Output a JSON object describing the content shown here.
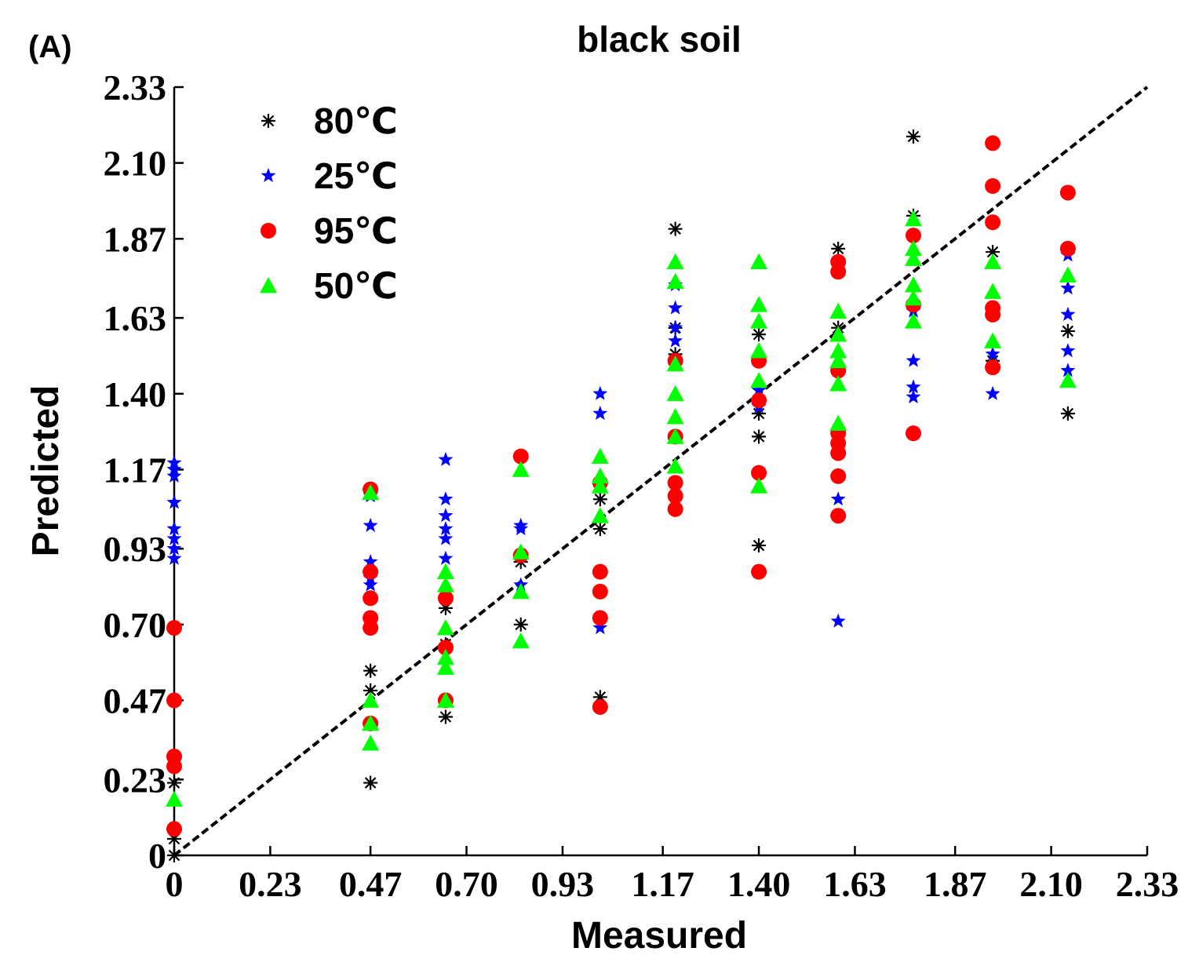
{
  "panel_label": "(A)",
  "chart_data": {
    "type": "scatter",
    "title": "black soil",
    "xlabel": "Measured",
    "ylabel": "Predicted",
    "xlim": [
      0,
      2.33
    ],
    "ylim": [
      0,
      2.33
    ],
    "x_ticks": [
      "0",
      "0.23",
      "0.47",
      "0.70",
      "0.93",
      "1.17",
      "1.40",
      "1.63",
      "1.87",
      "2.10",
      "2.33"
    ],
    "y_ticks": [
      "0",
      "0.23",
      "0.47",
      "0.70",
      "0.93",
      "1.17",
      "1.40",
      "1.63",
      "1.87",
      "2.10",
      "2.33"
    ],
    "legend_position": "top-left",
    "reference_line": {
      "style": "dashed",
      "color": "#000000",
      "from": [
        0,
        0
      ],
      "to": [
        2.33,
        2.33
      ]
    },
    "series": [
      {
        "name": "80℃",
        "marker": "asterisk",
        "color": "#000000",
        "points": [
          [
            0,
            0
          ],
          [
            0,
            0.05
          ],
          [
            0,
            0.22
          ],
          [
            0.47,
            0.22
          ],
          [
            0.47,
            0.5
          ],
          [
            0.47,
            0.56
          ],
          [
            0.65,
            0.42
          ],
          [
            0.65,
            0.64
          ],
          [
            0.65,
            0.75
          ],
          [
            0.83,
            0.7
          ],
          [
            0.83,
            0.89
          ],
          [
            1.02,
            0.48
          ],
          [
            1.02,
            0.99
          ],
          [
            1.02,
            1.08
          ],
          [
            1.2,
            1.52
          ],
          [
            1.2,
            1.6
          ],
          [
            1.2,
            1.9
          ],
          [
            1.4,
            0.94
          ],
          [
            1.4,
            1.27
          ],
          [
            1.4,
            1.34
          ],
          [
            1.4,
            1.58
          ],
          [
            1.59,
            1.6
          ],
          [
            1.59,
            1.84
          ],
          [
            1.77,
            1.94
          ],
          [
            1.77,
            2.18
          ],
          [
            1.96,
            1.5
          ],
          [
            1.96,
            1.83
          ],
          [
            2.14,
            1.34
          ],
          [
            2.14,
            1.59
          ]
        ]
      },
      {
        "name": "25℃",
        "marker": "star",
        "color": "#0000ff",
        "points": [
          [
            0,
            0.9
          ],
          [
            0,
            0.93
          ],
          [
            0,
            0.96
          ],
          [
            0,
            0.99
          ],
          [
            0,
            1.07
          ],
          [
            0,
            1.15
          ],
          [
            0,
            1.17
          ],
          [
            0,
            1.19
          ],
          [
            0.47,
            0.82
          ],
          [
            0.47,
            0.84
          ],
          [
            0.47,
            0.89
          ],
          [
            0.47,
            1.0
          ],
          [
            0.47,
            1.09
          ],
          [
            0.65,
            0.9
          ],
          [
            0.65,
            0.96
          ],
          [
            0.65,
            0.99
          ],
          [
            0.65,
            1.03
          ],
          [
            0.65,
            1.08
          ],
          [
            0.65,
            1.2
          ],
          [
            0.83,
            0.82
          ],
          [
            0.83,
            0.99
          ],
          [
            0.83,
            1.0
          ],
          [
            1.02,
            0.69
          ],
          [
            1.02,
            1.34
          ],
          [
            1.02,
            1.4
          ],
          [
            1.2,
            1.56
          ],
          [
            1.2,
            1.6
          ],
          [
            1.2,
            1.66
          ],
          [
            1.2,
            1.73
          ],
          [
            1.4,
            1.36
          ],
          [
            1.4,
            1.41
          ],
          [
            1.59,
            0.71
          ],
          [
            1.59,
            1.08
          ],
          [
            1.77,
            1.39
          ],
          [
            1.77,
            1.42
          ],
          [
            1.77,
            1.5
          ],
          [
            1.77,
            1.65
          ],
          [
            1.96,
            1.4
          ],
          [
            1.96,
            1.52
          ],
          [
            2.14,
            1.47
          ],
          [
            2.14,
            1.53
          ],
          [
            2.14,
            1.64
          ],
          [
            2.14,
            1.72
          ],
          [
            2.14,
            1.82
          ]
        ]
      },
      {
        "name": "95℃",
        "marker": "circle",
        "color": "#ff0000",
        "points": [
          [
            0,
            0.08
          ],
          [
            0,
            0.27
          ],
          [
            0,
            0.3
          ],
          [
            0,
            0.47
          ],
          [
            0,
            0.69
          ],
          [
            0.47,
            0.4
          ],
          [
            0.47,
            0.69
          ],
          [
            0.47,
            0.72
          ],
          [
            0.47,
            0.78
          ],
          [
            0.47,
            0.86
          ],
          [
            0.47,
            1.11
          ],
          [
            0.65,
            0.47
          ],
          [
            0.65,
            0.63
          ],
          [
            0.65,
            0.78
          ],
          [
            0.83,
            0.91
          ],
          [
            0.83,
            1.21
          ],
          [
            1.02,
            0.45
          ],
          [
            1.02,
            0.72
          ],
          [
            1.02,
            0.8
          ],
          [
            1.02,
            0.86
          ],
          [
            1.02,
            1.13
          ],
          [
            1.2,
            1.05
          ],
          [
            1.2,
            1.09
          ],
          [
            1.2,
            1.13
          ],
          [
            1.2,
            1.27
          ],
          [
            1.2,
            1.5
          ],
          [
            1.4,
            0.86
          ],
          [
            1.4,
            1.16
          ],
          [
            1.4,
            1.38
          ],
          [
            1.4,
            1.5
          ],
          [
            1.59,
            1.03
          ],
          [
            1.59,
            1.15
          ],
          [
            1.59,
            1.22
          ],
          [
            1.59,
            1.25
          ],
          [
            1.59,
            1.28
          ],
          [
            1.59,
            1.47
          ],
          [
            1.59,
            1.77
          ],
          [
            1.59,
            1.8
          ],
          [
            1.77,
            1.28
          ],
          [
            1.77,
            1.67
          ],
          [
            1.77,
            1.88
          ],
          [
            1.96,
            1.48
          ],
          [
            1.96,
            1.64
          ],
          [
            1.96,
            1.66
          ],
          [
            1.96,
            1.92
          ],
          [
            1.96,
            2.03
          ],
          [
            1.96,
            2.16
          ],
          [
            2.14,
            1.84
          ],
          [
            2.14,
            2.01
          ]
        ]
      },
      {
        "name": "50℃",
        "marker": "triangle",
        "color": "#00ff00",
        "points": [
          [
            0,
            0.17
          ],
          [
            0.47,
            0.34
          ],
          [
            0.47,
            0.4
          ],
          [
            0.47,
            0.47
          ],
          [
            0.47,
            1.1
          ],
          [
            0.65,
            0.47
          ],
          [
            0.65,
            0.57
          ],
          [
            0.65,
            0.6
          ],
          [
            0.65,
            0.69
          ],
          [
            0.65,
            0.82
          ],
          [
            0.65,
            0.86
          ],
          [
            0.83,
            0.65
          ],
          [
            0.83,
            0.8
          ],
          [
            0.83,
            0.92
          ],
          [
            0.83,
            1.17
          ],
          [
            1.02,
            1.03
          ],
          [
            1.02,
            1.12
          ],
          [
            1.02,
            1.15
          ],
          [
            1.02,
            1.21
          ],
          [
            1.2,
            1.18
          ],
          [
            1.2,
            1.27
          ],
          [
            1.2,
            1.33
          ],
          [
            1.2,
            1.4
          ],
          [
            1.2,
            1.49
          ],
          [
            1.2,
            1.74
          ],
          [
            1.2,
            1.8
          ],
          [
            1.4,
            1.12
          ],
          [
            1.4,
            1.44
          ],
          [
            1.4,
            1.53
          ],
          [
            1.4,
            1.62
          ],
          [
            1.4,
            1.67
          ],
          [
            1.4,
            1.8
          ],
          [
            1.59,
            1.31
          ],
          [
            1.59,
            1.43
          ],
          [
            1.59,
            1.5
          ],
          [
            1.59,
            1.53
          ],
          [
            1.59,
            1.58
          ],
          [
            1.59,
            1.65
          ],
          [
            1.77,
            1.62
          ],
          [
            1.77,
            1.69
          ],
          [
            1.77,
            1.73
          ],
          [
            1.77,
            1.81
          ],
          [
            1.77,
            1.84
          ],
          [
            1.77,
            1.93
          ],
          [
            1.96,
            1.56
          ],
          [
            1.96,
            1.71
          ],
          [
            1.96,
            1.8
          ],
          [
            2.14,
            1.44
          ],
          [
            2.14,
            1.76
          ]
        ]
      }
    ]
  }
}
